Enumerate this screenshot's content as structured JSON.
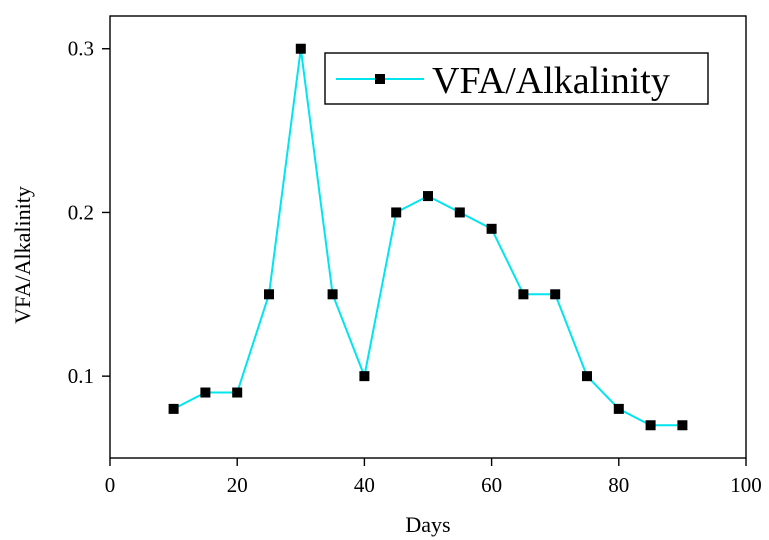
{
  "chart_data": {
    "type": "line",
    "xlabel": "Days",
    "ylabel": "VFA/Alkalinity",
    "xlim": [
      0,
      100
    ],
    "ylim": [
      0.05,
      0.32
    ],
    "x_ticks": [
      0,
      20,
      40,
      60,
      80,
      100
    ],
    "x_tick_labels": [
      "0",
      "20",
      "40",
      "60",
      "80",
      "100"
    ],
    "y_ticks": [
      0.1,
      0.2,
      0.3
    ],
    "y_tick_labels": [
      "0.1",
      "0.2",
      "0.3"
    ],
    "grid": false,
    "legend_position": "top-right",
    "series": [
      {
        "name": "VFA/Alkalinity",
        "color": "#00e5ee",
        "marker": "square",
        "marker_color": "#000000",
        "x": [
          10,
          15,
          20,
          25,
          30,
          35,
          40,
          45,
          50,
          55,
          60,
          65,
          70,
          75,
          80,
          85,
          90
        ],
        "y": [
          0.08,
          0.09,
          0.09,
          0.15,
          0.3,
          0.15,
          0.1,
          0.2,
          0.21,
          0.2,
          0.19,
          0.15,
          0.15,
          0.1,
          0.08,
          0.07,
          0.07
        ]
      }
    ]
  }
}
